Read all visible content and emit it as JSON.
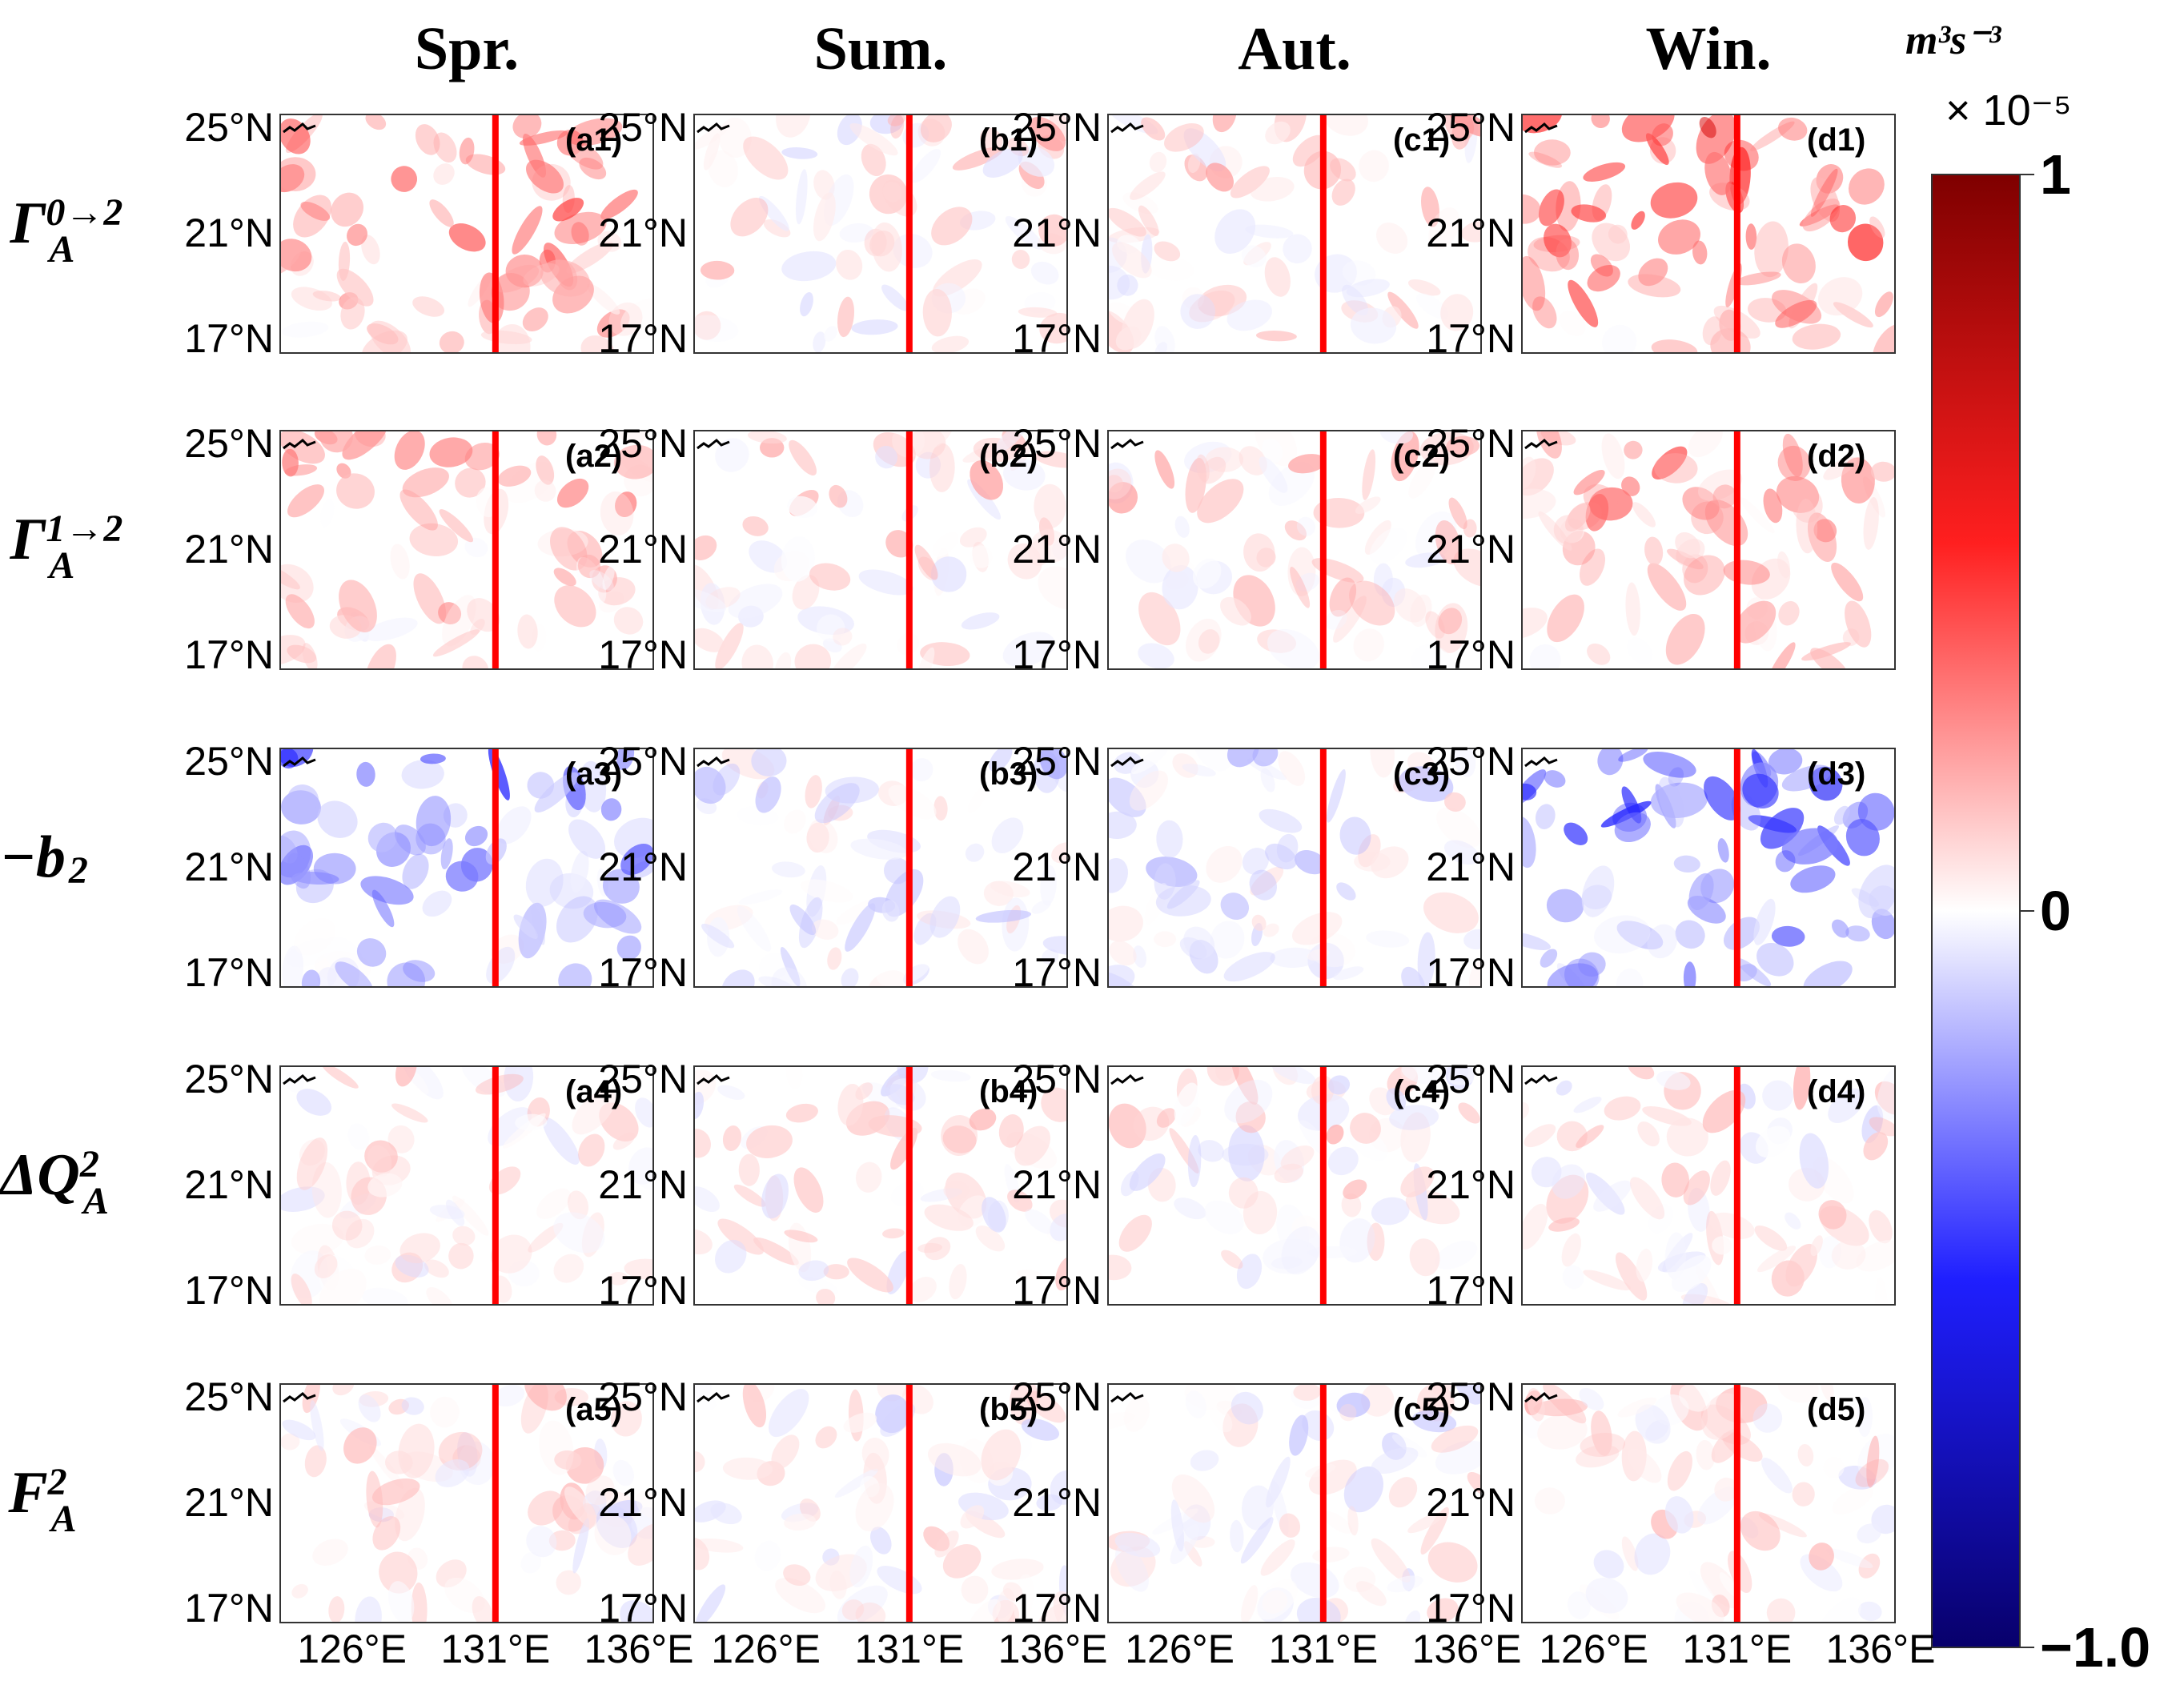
{
  "chart_data": {
    "type": "heatmap",
    "title": "",
    "seasons": [
      "Spr.",
      "Sum.",
      "Aut.",
      "Win."
    ],
    "season_keys": [
      "a",
      "b",
      "c",
      "d"
    ],
    "rows": [
      {
        "label_main": "Γ",
        "label_sup": "0→2",
        "label_sub": "A",
        "sign": 1
      },
      {
        "label_main": "Γ",
        "label_sup": "1→2",
        "label_sub": "A",
        "sign": 1
      },
      {
        "label_main": "−b",
        "label_sup": "",
        "label_sub": "2",
        "sign": -1
      },
      {
        "label_main": "ΔQ",
        "label_sup": "2",
        "label_sub": "A",
        "sign": 0
      },
      {
        "label_main": "F",
        "label_sup": "2",
        "label_sub": "A",
        "sign": 0
      }
    ],
    "panel_labels": [
      [
        "(a1)",
        "(b1)",
        "(c1)",
        "(d1)"
      ],
      [
        "(a2)",
        "(b2)",
        "(c2)",
        "(d2)"
      ],
      [
        "(a3)",
        "(b3)",
        "(c3)",
        "(d3)"
      ],
      [
        "(a4)",
        "(b4)",
        "(c4)",
        "(d4)"
      ],
      [
        "(a5)",
        "(b5)",
        "(c5)",
        "(d5)"
      ]
    ],
    "mean_intensity": [
      [
        0.35,
        0.08,
        0.1,
        0.45
      ],
      [
        0.2,
        0.1,
        0.12,
        0.22
      ],
      [
        -0.3,
        -0.05,
        -0.05,
        -0.4
      ],
      [
        0.05,
        0.05,
        0.05,
        0.05
      ],
      [
        0.05,
        0.02,
        0.0,
        0.08
      ]
    ],
    "lat_ticks": [
      "25°N",
      "21°N",
      "17°N"
    ],
    "lon_ticks": [
      "126°E",
      "131°E",
      "136°E"
    ],
    "lat_range": [
      16.5,
      25.5
    ],
    "lon_range": [
      123.5,
      136.5
    ],
    "section_line_lon": 131,
    "section_line_color": "#ff0000",
    "colorbar": {
      "min": -1.0,
      "max": 1,
      "mid": 0,
      "tick_labels": [
        "1",
        "0",
        "−1.0"
      ],
      "unit": "m³s⁻³",
      "scale": "× 10⁻⁵",
      "colors": [
        "#08006b",
        "#1f1fff",
        "#ffffff",
        "#ff1f1f",
        "#7f0000"
      ]
    }
  }
}
